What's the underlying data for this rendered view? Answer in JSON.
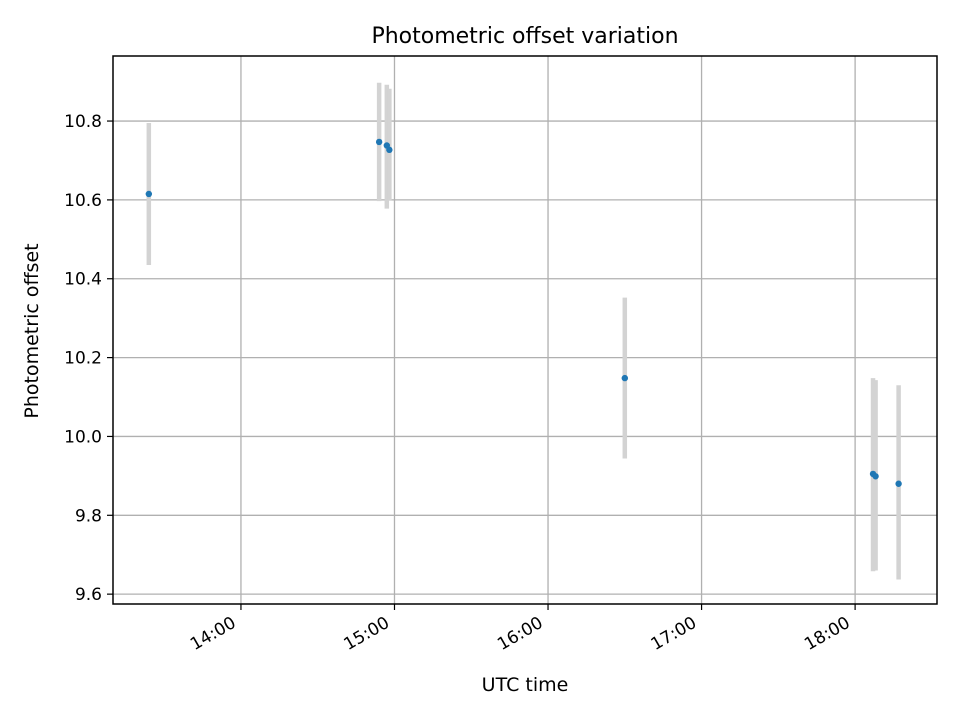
{
  "chart_data": {
    "type": "scatter",
    "title": "Photometric offset variation",
    "xlabel": "UTC time",
    "ylabel": "Photometric offset",
    "x_ticks": [
      "14:00",
      "15:00",
      "16:00",
      "17:00",
      "18:00"
    ],
    "y_ticks": [
      "9.6",
      "9.8",
      "10.0",
      "10.2",
      "10.4",
      "10.6",
      "10.8"
    ],
    "xlim": [
      "13:10",
      "18:32"
    ],
    "ylim": [
      9.575,
      10.965
    ],
    "grid": true,
    "series": [
      {
        "points": [
          {
            "x": "13:24",
            "y": 10.615,
            "err_low": 10.435,
            "err_high": 10.795
          },
          {
            "x": "14:54",
            "y": 10.747,
            "err_low": 10.597,
            "err_high": 10.897
          },
          {
            "x": "14:57",
            "y": 10.738,
            "err_low": 10.578,
            "err_high": 10.892
          },
          {
            "x": "14:58",
            "y": 10.727,
            "err_low": 10.598,
            "err_high": 10.882
          },
          {
            "x": "16:30",
            "y": 10.148,
            "err_low": 9.944,
            "err_high": 10.352
          },
          {
            "x": "18:07",
            "y": 9.905,
            "err_low": 9.658,
            "err_high": 10.148
          },
          {
            "x": "18:08",
            "y": 9.899,
            "err_low": 9.66,
            "err_high": 10.143
          },
          {
            "x": "18:17",
            "y": 9.88,
            "err_low": 9.637,
            "err_high": 10.13
          }
        ]
      }
    ],
    "colors": {
      "points": "#1f77b4",
      "error_bars": "#d3d3d3",
      "grid": "#b0b0b0"
    }
  }
}
